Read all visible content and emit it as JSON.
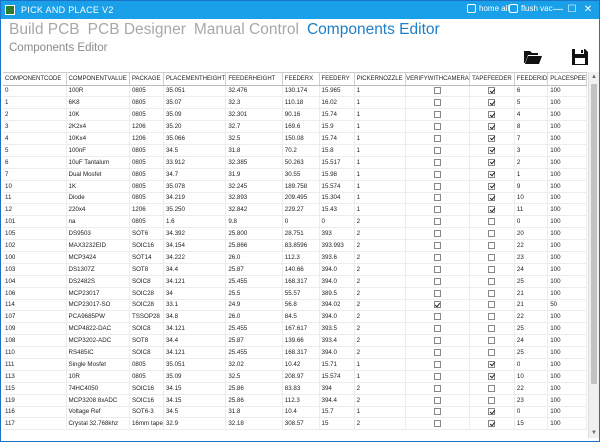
{
  "window": {
    "title": "PICK AND PLACE V2",
    "home_all_label": "home all",
    "flush_vac_label": "flush vac",
    "minimize_glyph": "—",
    "maximize_glyph": "☐",
    "close_glyph": "✕"
  },
  "nav": {
    "tabs": [
      {
        "label": "Build PCB"
      },
      {
        "label": "PCB Designer"
      },
      {
        "label": "Manual Control"
      },
      {
        "label": "Components Editor"
      }
    ],
    "active_index": 3
  },
  "page": {
    "subtitle": "Components Editor",
    "open_icon": "folder-open-icon",
    "save_icon": "save-icon"
  },
  "grid": {
    "columns": [
      "COMPONENTCODE",
      "COMPONENTVALUE",
      "PACKAGE",
      "PLACEMENTHEIGHT",
      "FEEDERHEIGHT",
      "FEEDERX",
      "FEEDERY",
      "PICKERNOZZLE",
      "VERIFYWITHCAMERA",
      "TAPEFEEDER",
      "FEEDERID",
      "PLACESPEE"
    ],
    "rows": [
      [
        "0",
        "100R",
        "0805",
        "35.051",
        "32.476",
        "130.174",
        "15.965",
        "1",
        false,
        true,
        "6",
        "100"
      ],
      [
        "1",
        "6K8",
        "0805",
        "35.07",
        "32.3",
        "110.18",
        "16.02",
        "1",
        false,
        true,
        "5",
        "100"
      ],
      [
        "2",
        "10K",
        "0805",
        "35.09",
        "32.301",
        "90.16",
        "15.74",
        "1",
        false,
        true,
        "4",
        "100"
      ],
      [
        "3",
        "2K2x4",
        "1206",
        "35.20",
        "32.7",
        "169.6",
        "15.9",
        "1",
        false,
        true,
        "8",
        "100"
      ],
      [
        "4",
        "10Kx4",
        "1206",
        "35.066",
        "32.5",
        "150.08",
        "15.74",
        "1",
        false,
        true,
        "7",
        "100"
      ],
      [
        "5",
        "100nF",
        "0805",
        "34.5",
        "31.8",
        "70.2",
        "15.8",
        "1",
        false,
        true,
        "3",
        "100"
      ],
      [
        "6",
        "10uF Tantalum",
        "0805",
        "33.912",
        "32.385",
        "50.263",
        "15.517",
        "1",
        false,
        true,
        "2",
        "100"
      ],
      [
        "7",
        "Dual Mosfet",
        "0805",
        "34.7",
        "31.9",
        "30.55",
        "15.98",
        "1",
        false,
        true,
        "1",
        "100"
      ],
      [
        "10",
        "1K",
        "0805",
        "35.078",
        "32.245",
        "189.758",
        "15.574",
        "1",
        false,
        true,
        "9",
        "100"
      ],
      [
        "11",
        "Diode",
        "0805",
        "34.219",
        "32.893",
        "209.495",
        "15.304",
        "1",
        false,
        true,
        "10",
        "100"
      ],
      [
        "12",
        "220x4",
        "1206",
        "35.250",
        "32.842",
        "229.27",
        "15.43",
        "1",
        false,
        true,
        "11",
        "100"
      ],
      [
        "101",
        "na",
        "0805",
        "1.6",
        "9.8",
        "0",
        "0",
        "2",
        false,
        false,
        "0",
        "100"
      ],
      [
        "105",
        "DS9503",
        "SOT6",
        "34.392",
        "25.800",
        "28.751",
        "393",
        "2",
        false,
        false,
        "20",
        "100"
      ],
      [
        "102",
        "MAX3232EID",
        "SOIC16",
        "34.154",
        "25.866",
        "83.8596",
        "393.993",
        "2",
        false,
        false,
        "22",
        "100"
      ],
      [
        "100",
        "MCP3424",
        "SOT14",
        "34.222",
        "26.0",
        "112.3",
        "393.6",
        "2",
        false,
        false,
        "23",
        "100"
      ],
      [
        "103",
        "DS1307Z",
        "SOT8",
        "34.4",
        "25.87",
        "140.66",
        "394.0",
        "2",
        false,
        false,
        "24",
        "100"
      ],
      [
        "104",
        "DS2482S",
        "SOIC8",
        "34.121",
        "25.455",
        "168.317",
        "394.0",
        "2",
        false,
        false,
        "25",
        "100"
      ],
      [
        "106",
        "MCP23017",
        "SOIC28",
        "34",
        "25.5",
        "55.57",
        "389.5",
        "2",
        false,
        false,
        "21",
        "100"
      ],
      [
        "114",
        "MCP23017-SO",
        "SOIC28",
        "33.1",
        "24.9",
        "56.8",
        "394.02",
        "2",
        true,
        false,
        "21",
        "50"
      ],
      [
        "107",
        "PCA9685PW",
        "TSSOP28",
        "34.8",
        "26.0",
        "84.5",
        "394.0",
        "2",
        false,
        false,
        "22",
        "100"
      ],
      [
        "109",
        "MCP4822-DAC",
        "SOIC8",
        "34.121",
        "25.455",
        "167.617",
        "393.5",
        "2",
        false,
        false,
        "25",
        "100"
      ],
      [
        "108",
        "MCP3202-ADC",
        "SOT8",
        "34.4",
        "25.87",
        "139.66",
        "393.4",
        "2",
        false,
        false,
        "24",
        "100"
      ],
      [
        "110",
        "RS485IC",
        "SOIC8",
        "34.121",
        "25.455",
        "168.317",
        "394.0",
        "2",
        false,
        false,
        "25",
        "100"
      ],
      [
        "111",
        "Single Mosfet",
        "0805",
        "35.051",
        "32.02",
        "10.42",
        "15.71",
        "1",
        false,
        true,
        "0",
        "100"
      ],
      [
        "113",
        "10R",
        "0805",
        "35.09",
        "32.5",
        "208.97",
        "15.574",
        "1",
        false,
        true,
        "10",
        "100"
      ],
      [
        "115",
        "74HC4050",
        "SOIC16",
        "34.15",
        "25.86",
        "83.83",
        "394",
        "2",
        false,
        false,
        "22",
        "100"
      ],
      [
        "119",
        "MCP3208 8xADC",
        "SOIC16",
        "34.15",
        "25.86",
        "112.3",
        "394.4",
        "2",
        false,
        false,
        "23",
        "100"
      ],
      [
        "116",
        "Voltage Ref",
        "SOT6-3",
        "34.5",
        "31.8",
        "10.4",
        "15.7",
        "1",
        false,
        true,
        "0",
        "100"
      ],
      [
        "117",
        "Crystal 32.768khz",
        "16mm tape",
        "32.9",
        "32.18",
        "308.57",
        "15",
        "2",
        false,
        true,
        "15",
        "100"
      ]
    ]
  }
}
